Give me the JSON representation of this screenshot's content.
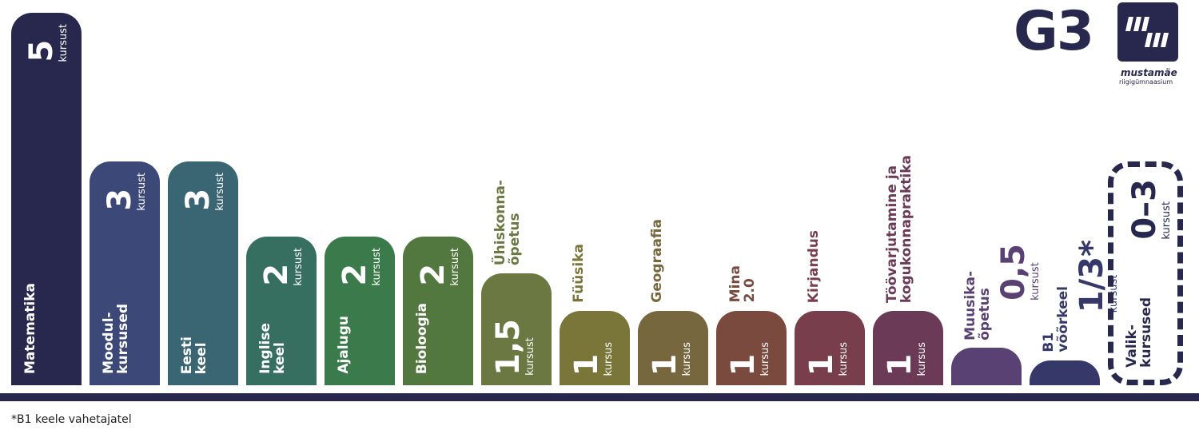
{
  "chart_data": {
    "type": "bar",
    "categories": [
      "Matematika",
      "Moodul-\nkursused",
      "Eesti\nkeel",
      "Inglise\nkeel",
      "Ajalugu",
      "Bioloogia",
      "Ühiskonna-\nõpetus",
      "Füüsika",
      "Geograafia",
      "Mina\n2.0",
      "Kirjandus",
      "Töövarjutamine ja\nkogukonnapraktika",
      "Muusika-\nõpetus",
      "B1\nvõõrkeel"
    ],
    "values": [
      5,
      3,
      3,
      2,
      2,
      2,
      1.5,
      1,
      1,
      1,
      1,
      1,
      0.5,
      0.333
    ],
    "value_labels": [
      "5",
      "3",
      "3",
      "2",
      "2",
      "2",
      "1,5",
      "1",
      "1",
      "1",
      "1",
      "1",
      "0,5",
      "1/3*"
    ],
    "units": [
      "kursust",
      "kursust",
      "kursust",
      "kursust",
      "kursust",
      "kursust",
      "kursust",
      "kursus",
      "kursus",
      "kursus",
      "kursus",
      "kursus",
      "kursust",
      "kursust"
    ],
    "colors": [
      "#28284f",
      "#3c4878",
      "#3a6572",
      "#366f60",
      "#3b7a4b",
      "#52773f",
      "#6b7842",
      "#7a7538",
      "#76673e",
      "#7a4a3f",
      "#793e4b",
      "#6a3a57",
      "#5a4173",
      "#37386a"
    ],
    "optional": {
      "name": "Valik-\nkursused",
      "range": [
        0,
        3
      ],
      "range_label": "0–3",
      "unit": "kursust",
      "color": "#28284f"
    },
    "footnote": "*B1 keele vahetajatel"
  },
  "logo": {
    "grade": "G3",
    "school": "mustamäe",
    "school_type": "riigigümnaasium"
  }
}
